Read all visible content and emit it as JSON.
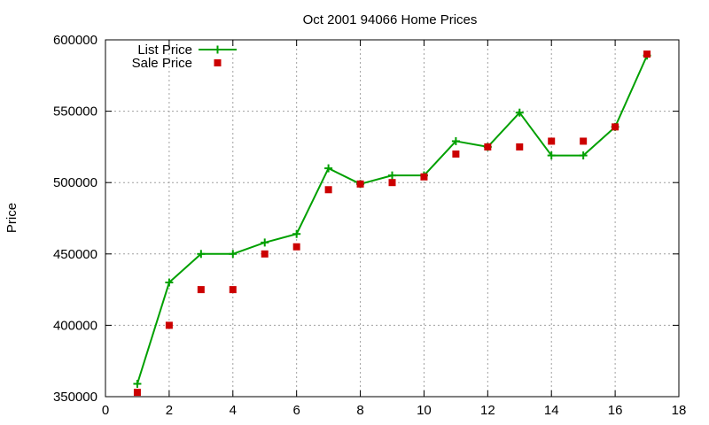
{
  "chart_data": {
    "type": "line",
    "title": "Oct 2001 94066 Home Prices",
    "xlabel": "",
    "ylabel": "Price",
    "xlim": [
      0,
      18
    ],
    "ylim": [
      350000,
      600000
    ],
    "xticks": [
      0,
      2,
      4,
      6,
      8,
      10,
      12,
      14,
      16,
      18
    ],
    "yticks": [
      350000,
      400000,
      450000,
      500000,
      550000,
      600000
    ],
    "xtick_labels": [
      "0",
      "2",
      "4",
      "6",
      "8",
      "10",
      "12",
      "14",
      "16",
      "18"
    ],
    "ytick_labels": [
      "350000",
      "400000",
      "450000",
      "500000",
      "550000",
      "600000"
    ],
    "grid": true,
    "legend_position": "top-left",
    "series": [
      {
        "name": "List Price",
        "style": "linespoints",
        "marker": "plus",
        "color": "#00a000",
        "x": [
          1,
          2,
          3,
          4,
          5,
          6,
          7,
          8,
          9,
          10,
          11,
          12,
          13,
          14,
          15,
          16,
          17
        ],
        "y": [
          359000,
          430000,
          450000,
          450000,
          458000,
          464000,
          510000,
          499000,
          505000,
          505000,
          529000,
          525000,
          549000,
          519000,
          519000,
          539000,
          589000
        ]
      },
      {
        "name": "Sale Price",
        "style": "points",
        "marker": "square",
        "color": "#cc0000",
        "x": [
          1,
          2,
          3,
          4,
          5,
          6,
          7,
          8,
          9,
          10,
          11,
          12,
          13,
          14,
          15,
          16,
          17
        ],
        "y": [
          353000,
          400000,
          425000,
          425000,
          450000,
          455000,
          495000,
          499000,
          500000,
          504000,
          520000,
          525000,
          525000,
          529000,
          529000,
          539000,
          590000
        ]
      }
    ]
  }
}
